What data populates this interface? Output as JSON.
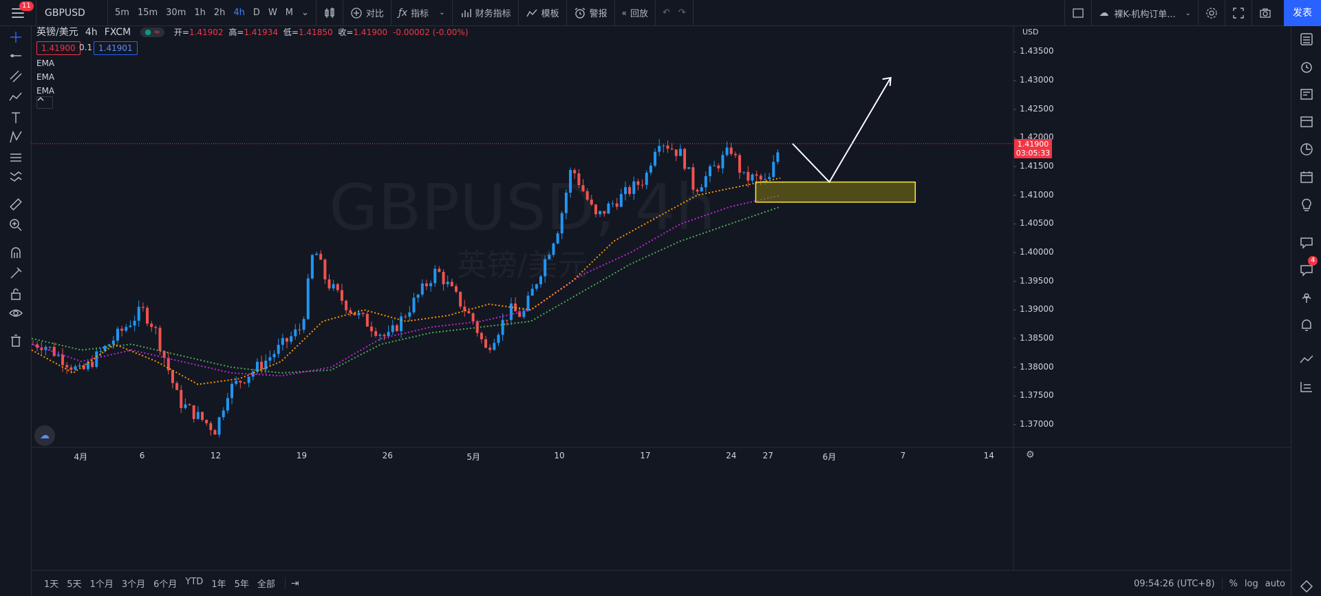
{
  "app": {
    "notification_count": "11",
    "symbol": "GBPUSD",
    "intervals": [
      "5m",
      "15m",
      "30m",
      "1h",
      "2h",
      "4h",
      "D",
      "W",
      "M"
    ],
    "active_interval": "4h",
    "buttons": {
      "compare": "对比",
      "indicators": "指标",
      "financials": "财务指标",
      "templates": "模板",
      "alert": "警报",
      "replay": "回放"
    },
    "layout_name": "裸K-机构订单...",
    "publish": "发表"
  },
  "legend": {
    "title": "英镑/美元",
    "interval": "4h",
    "exchange": "FXCM",
    "open_label": "开=",
    "open": "1.41902",
    "high_label": "高=",
    "high": "1.41934",
    "low_label": "低=",
    "low": "1.41850",
    "close_label": "收=",
    "close": "1.41900",
    "change": "-0.00002 (-0.00%)",
    "bid": "1.41900",
    "spread": "0.1",
    "ask": "1.41901",
    "ema_labels": [
      "EMA",
      "EMA",
      "EMA"
    ]
  },
  "watermark": {
    "symbol": "GBPUSD, 4h",
    "name": "英镑/美元"
  },
  "price_axis": {
    "currency": "USD",
    "ticks": [
      "1.43500",
      "1.43000",
      "1.42500",
      "1.42000",
      "1.41500",
      "1.41000",
      "1.40500",
      "1.40000",
      "1.39500",
      "1.39000",
      "1.38500",
      "1.38000",
      "1.37500",
      "1.37000"
    ],
    "last_price": "1.41900",
    "countdown": "03:05:33"
  },
  "time_axis": {
    "ticks": [
      "4月",
      "6",
      "12",
      "19",
      "26",
      "5月",
      "10",
      "17",
      "24",
      "27",
      "6月",
      "7",
      "14"
    ]
  },
  "bottom": {
    "ranges": [
      "1天",
      "5天",
      "1个月",
      "3个月",
      "6个月",
      "YTD",
      "1年",
      "5年",
      "全部"
    ],
    "time": "09:54:26 (UTC+8)",
    "percent": "%",
    "log": "log",
    "auto": "auto"
  },
  "right_badge": "4",
  "colors": {
    "up": "#2196f3",
    "down": "#ef5350",
    "ema_fast": "#ff9800",
    "ema_mid": "#c026d3",
    "ema_slow": "#4caf50",
    "zone_border": "#ffeb3b",
    "accent": "#2962ff"
  },
  "chart_data": {
    "type": "candlestick",
    "symbol": "GBPUSD",
    "timeframe": "4h",
    "ylim": [
      1.3665,
      1.4395
    ],
    "last_close": 1.419,
    "close_path": [
      {
        "date": "2021-03-29",
        "close": 1.384
      },
      {
        "date": "2021-04-01",
        "close": 1.379
      },
      {
        "date": "2021-04-06",
        "close": 1.39
      },
      {
        "date": "2021-04-07",
        "close": 1.387
      },
      {
        "date": "2021-04-09",
        "close": 1.374
      },
      {
        "date": "2021-04-12",
        "close": 1.369
      },
      {
        "date": "2021-04-13",
        "close": 1.376
      },
      {
        "date": "2021-04-16",
        "close": 1.381
      },
      {
        "date": "2021-04-19",
        "close": 1.387
      },
      {
        "date": "2021-04-20",
        "close": 1.401
      },
      {
        "date": "2021-04-21",
        "close": 1.395
      },
      {
        "date": "2021-04-23",
        "close": 1.39
      },
      {
        "date": "2021-04-26",
        "close": 1.385
      },
      {
        "date": "2021-04-28",
        "close": 1.391
      },
      {
        "date": "2021-04-29",
        "close": 1.394
      },
      {
        "date": "2021-04-30",
        "close": 1.397
      },
      {
        "date": "2021-05-03",
        "close": 1.388
      },
      {
        "date": "2021-05-04",
        "close": 1.383
      },
      {
        "date": "2021-05-06",
        "close": 1.39
      },
      {
        "date": "2021-05-07",
        "close": 1.389
      },
      {
        "date": "2021-05-10",
        "close": 1.405
      },
      {
        "date": "2021-05-11",
        "close": 1.415
      },
      {
        "date": "2021-05-13",
        "close": 1.406
      },
      {
        "date": "2021-05-14",
        "close": 1.408
      },
      {
        "date": "2021-05-17",
        "close": 1.413
      },
      {
        "date": "2021-05-18",
        "close": 1.42
      },
      {
        "date": "2021-05-20",
        "close": 1.417
      },
      {
        "date": "2021-05-21",
        "close": 1.411
      },
      {
        "date": "2021-05-24",
        "close": 1.418
      },
      {
        "date": "2021-05-25",
        "close": 1.413
      },
      {
        "date": "2021-05-26",
        "close": 1.413
      },
      {
        "date": "2021-05-27",
        "close": 1.412
      },
      {
        "date": "2021-05-28",
        "close": 1.419
      }
    ],
    "ema_fast_path": [
      1.383,
      1.379,
      1.384,
      1.381,
      1.377,
      1.378,
      1.381,
      1.388,
      1.39,
      1.388,
      1.389,
      1.391,
      1.39,
      1.395,
      1.402,
      1.406,
      1.41,
      1.4115,
      1.413
    ],
    "ema_mid_path": [
      1.384,
      1.381,
      1.383,
      1.381,
      1.379,
      1.3785,
      1.38,
      1.385,
      1.387,
      1.388,
      1.39,
      1.396,
      1.4,
      1.405,
      1.408,
      1.41
    ],
    "ema_slow_path": [
      1.385,
      1.383,
      1.384,
      1.382,
      1.38,
      1.379,
      1.3795,
      1.384,
      1.386,
      1.387,
      1.388,
      1.393,
      1.398,
      1.402,
      1.405,
      1.408
    ],
    "zone": {
      "from_date": "2021-05-26",
      "to_date": "2021-06-08",
      "top": 1.4123,
      "bottom": 1.4088
    },
    "projection_path": [
      {
        "date": "2021-05-29",
        "price": 1.419
      },
      {
        "date": "2021-06-01",
        "price": 1.4123
      },
      {
        "date": "2021-06-06",
        "price": 1.4305
      }
    ]
  }
}
